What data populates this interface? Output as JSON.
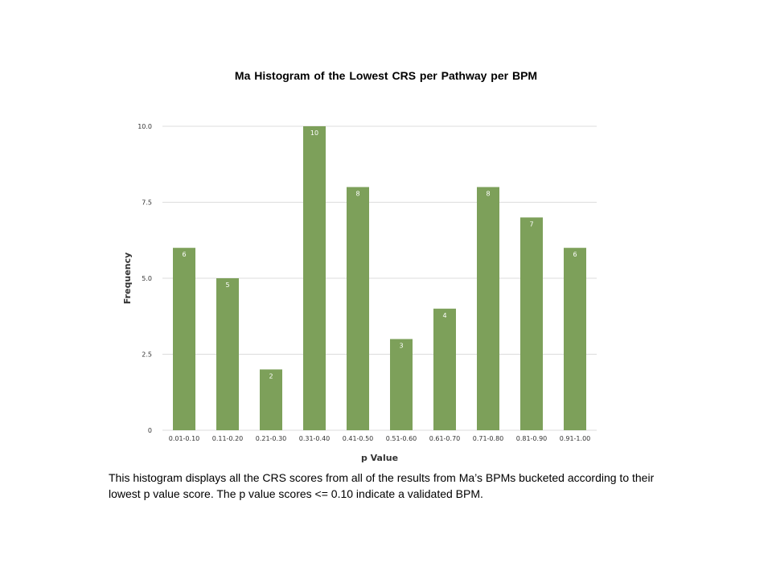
{
  "chart_data": {
    "type": "bar",
    "title": "Ma Histogram of the Lowest CRS per Pathway per BPM",
    "xlabel": "p Value",
    "ylabel": "Frequency",
    "categories": [
      "0.01-0.10",
      "0.11-0.20",
      "0.21-0.30",
      "0.31-0.40",
      "0.41-0.50",
      "0.51-0.60",
      "0.61-0.70",
      "0.71-0.80",
      "0.81-0.90",
      "0.91-1.00"
    ],
    "values": [
      6,
      5,
      2,
      10,
      8,
      3,
      4,
      8,
      7,
      6
    ],
    "yticks": [
      "0",
      "2.5",
      "5.0",
      "7.5",
      "10.0"
    ],
    "ylim": [
      0,
      10
    ],
    "grid": true,
    "bar_color": "#7da05a",
    "grid_color": "#dcdcdc"
  },
  "caption": "This histogram displays all the CRS scores from all of the results from Ma’s BPMs bucketed according to their lowest p value score.  The p value scores <= 0.10 indicate a validated BPM."
}
